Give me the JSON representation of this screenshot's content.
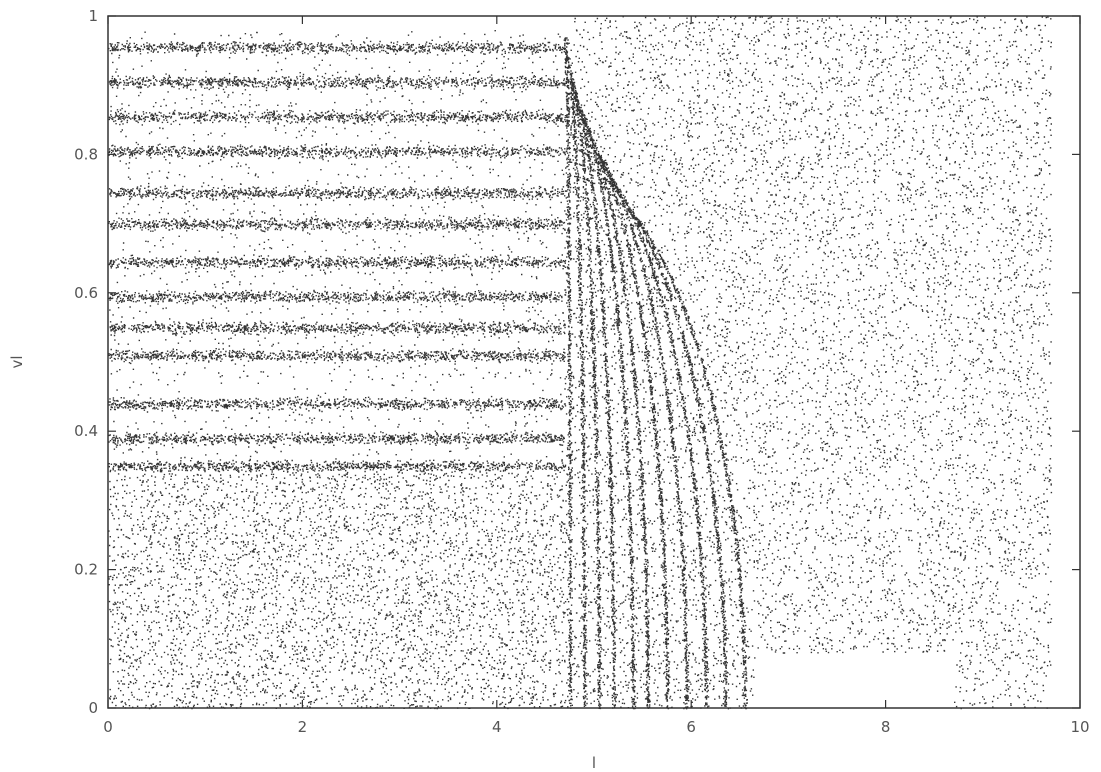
{
  "chart_data": {
    "type": "scatter",
    "xlabel": "l",
    "ylabel": "vl",
    "xlim": [
      0,
      10
    ],
    "ylim": [
      0,
      1
    ],
    "x_ticks": [
      0,
      2,
      4,
      6,
      8,
      10
    ],
    "y_ticks": [
      0,
      0.2,
      0.4,
      0.6,
      0.8,
      1
    ],
    "x_tick_labels": [
      "0",
      "2",
      "4",
      "6",
      "8",
      "10"
    ],
    "y_tick_labels": [
      "0",
      "0.2",
      "0.4",
      "0.6",
      "0.8",
      "1"
    ],
    "grid": false,
    "legend": "none",
    "point_color": "#333333",
    "regions": [
      {
        "name": "left-band-region",
        "x_range": [
          0,
          4.7
        ],
        "band_y": [
          0.955,
          0.905,
          0.855,
          0.805,
          0.745,
          0.7,
          0.645,
          0.595,
          0.55,
          0.51,
          0.44,
          0.39,
          0.35
        ],
        "background_y_range": [
          0,
          0.34
        ]
      },
      {
        "name": "middle-curve-region",
        "x_range": [
          4.7,
          6.65
        ],
        "curves_x_at_bottom": [
          4.75,
          4.9,
          5.05,
          5.2,
          5.4,
          5.55,
          5.75,
          5.95,
          6.15,
          6.35,
          6.55
        ]
      },
      {
        "name": "right-scatter-region",
        "x_range": [
          4.7,
          9.7
        ],
        "y_range": [
          0,
          1
        ],
        "empty_box": {
          "x_range": [
            6.65,
            8.7
          ],
          "y_range": [
            0,
            0.08
          ]
        }
      }
    ]
  }
}
